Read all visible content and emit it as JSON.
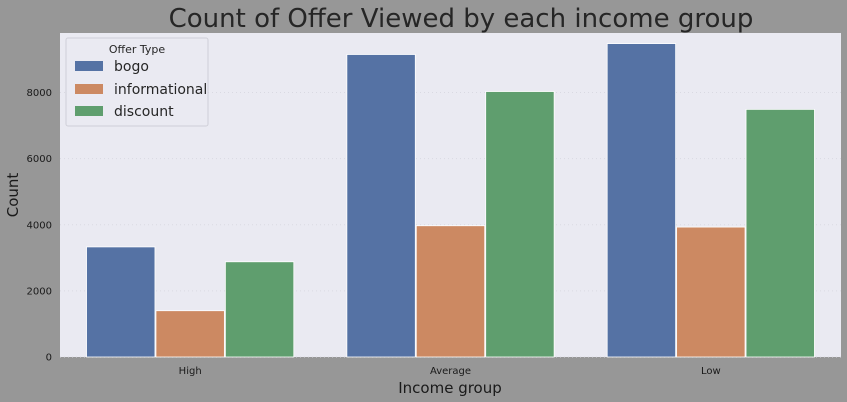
{
  "chart_data": {
    "type": "bar",
    "title": "Count of Offer Viewed by each income group",
    "xlabel": "Income group",
    "ylabel": "Count",
    "categories": [
      "High",
      "Average",
      "Low"
    ],
    "ylim": [
      0,
      9800
    ],
    "yticks": [
      0,
      2000,
      4000,
      6000,
      8000
    ],
    "grid": true,
    "legend": {
      "title": "Offer Type",
      "placement": "top-left"
    },
    "series": [
      {
        "name": "bogo",
        "values": [
          3330,
          9150,
          9480
        ],
        "color": "#5572a4"
      },
      {
        "name": "informational",
        "values": [
          1400,
          3970,
          3930
        ],
        "color": "#cc8962"
      },
      {
        "name": "discount",
        "values": [
          2880,
          8030,
          7490
        ],
        "color": "#5f9e6e"
      }
    ]
  },
  "colors": {
    "page_background": "#979797",
    "plot_background": "#eaeaf2",
    "text": "#262626"
  }
}
